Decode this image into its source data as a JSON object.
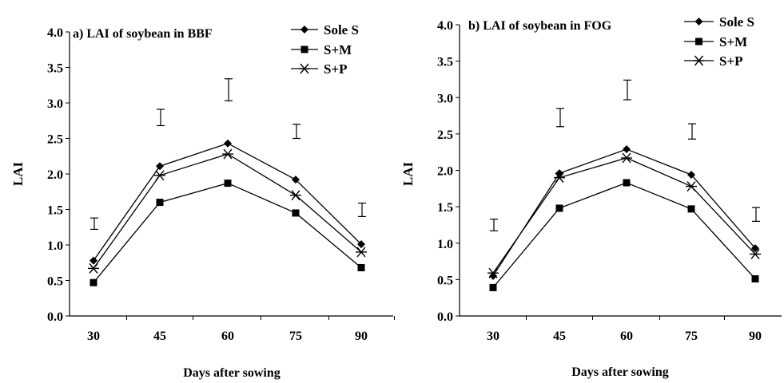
{
  "chart_data": [
    {
      "type": "line",
      "title": "a) LAI of soybean in BBF",
      "xlabel": "Days after sowing",
      "ylabel": "LAI",
      "categories": [
        "30",
        "45",
        "60",
        "75",
        "90"
      ],
      "ylim": [
        0,
        4
      ],
      "yticks": [
        "0.0",
        "0.5",
        "1.0",
        "1.5",
        "2.0",
        "2.5",
        "3.0",
        "3.5",
        "4.0"
      ],
      "grid": false,
      "legend_position": "top-right",
      "series": [
        {
          "name": "Sole S",
          "marker": "diamond",
          "values": [
            0.78,
            2.11,
            2.43,
            1.92,
            1.01
          ]
        },
        {
          "name": "S+M",
          "marker": "square",
          "values": [
            0.47,
            1.6,
            1.87,
            1.45,
            0.68
          ]
        },
        {
          "name": "S+P",
          "marker": "asterisk",
          "values": [
            0.67,
            1.98,
            2.28,
            1.7,
            0.9
          ]
        }
      ],
      "error_bars": [
        {
          "category": "30",
          "low": 1.22,
          "high": 1.38
        },
        {
          "category": "45",
          "low": 2.68,
          "high": 2.91
        },
        {
          "category": "60",
          "low": 3.03,
          "high": 3.34
        },
        {
          "category": "75",
          "low": 2.5,
          "high": 2.7
        },
        {
          "category": "90",
          "low": 1.4,
          "high": 1.59
        }
      ]
    },
    {
      "type": "line",
      "title": "b) LAI of soybean in FOG",
      "xlabel": "Days after sowing",
      "ylabel": "LAI",
      "categories": [
        "30",
        "45",
        "60",
        "75",
        "90"
      ],
      "ylim": [
        0,
        4
      ],
      "yticks": [
        "0.0",
        "0.5",
        "1.0",
        "1.5",
        "2.0",
        "2.5",
        "3.0",
        "3.5",
        "4.0"
      ],
      "grid": false,
      "legend_position": "top-right",
      "series": [
        {
          "name": "Sole S",
          "marker": "diamond",
          "values": [
            0.55,
            1.96,
            2.29,
            1.94,
            0.93
          ]
        },
        {
          "name": "S+M",
          "marker": "square",
          "values": [
            0.39,
            1.48,
            1.83,
            1.47,
            0.51
          ]
        },
        {
          "name": "S+P",
          "marker": "asterisk",
          "values": [
            0.59,
            1.9,
            2.17,
            1.78,
            0.85
          ]
        }
      ],
      "error_bars": [
        {
          "category": "30",
          "low": 1.17,
          "high": 1.33
        },
        {
          "category": "45",
          "low": 2.6,
          "high": 2.85
        },
        {
          "category": "60",
          "low": 2.97,
          "high": 3.24
        },
        {
          "category": "75",
          "low": 2.43,
          "high": 2.64
        },
        {
          "category": "90",
          "low": 1.3,
          "high": 1.49
        }
      ]
    }
  ]
}
